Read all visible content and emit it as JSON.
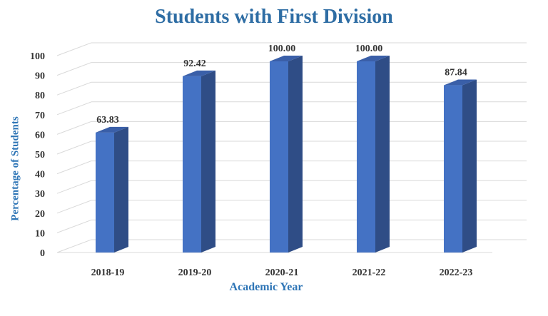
{
  "chart_data": {
    "type": "bar",
    "title": "Students with First Division",
    "xlabel": "Academic Year",
    "ylabel": "Percentage of Students",
    "categories": [
      "2018-19",
      "2019-20",
      "2020-21",
      "2021-22",
      "2022-23"
    ],
    "values": [
      63.83,
      92.42,
      100.0,
      100.0,
      87.84
    ],
    "value_labels": [
      "63.83",
      "92.42",
      "100.00",
      "100.00",
      "87.84"
    ],
    "ylim": [
      0,
      100
    ],
    "yticks": [
      "0",
      "10",
      "20",
      "30",
      "40",
      "50",
      "60",
      "70",
      "80",
      "90",
      "100"
    ],
    "grid": true,
    "colors": {
      "bar_front": "#4472C4",
      "bar_side": "#2F4D86",
      "bar_top": "#3A5FA8",
      "title": "#2E6DA4",
      "axis_label": "#2E75B6",
      "grid": "#D9D9D9"
    }
  }
}
